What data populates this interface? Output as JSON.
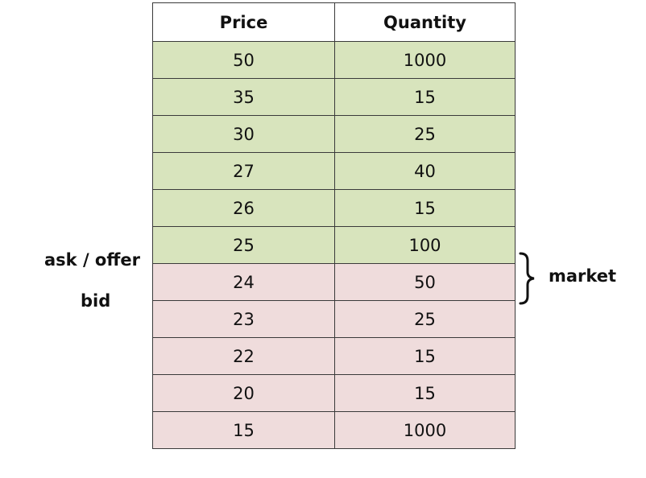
{
  "table": {
    "headers": {
      "price": "Price",
      "quantity": "Quantity"
    },
    "ask_rows": [
      {
        "price": "50",
        "quantity": "1000"
      },
      {
        "price": "35",
        "quantity": "15"
      },
      {
        "price": "30",
        "quantity": "25"
      },
      {
        "price": "27",
        "quantity": "40"
      },
      {
        "price": "26",
        "quantity": "15"
      },
      {
        "price": "25",
        "quantity": "100"
      }
    ],
    "bid_rows": [
      {
        "price": "24",
        "quantity": "50"
      },
      {
        "price": "23",
        "quantity": "25"
      },
      {
        "price": "22",
        "quantity": "15"
      },
      {
        "price": "20",
        "quantity": "15"
      },
      {
        "price": "15",
        "quantity": "1000"
      }
    ]
  },
  "labels": {
    "ask": "ask / offer",
    "bid": "bid",
    "market": "market"
  },
  "colors": {
    "ask_fill": "#d8e4bd",
    "bid_fill": "#efdcdc",
    "border": "#3a3a3a"
  }
}
